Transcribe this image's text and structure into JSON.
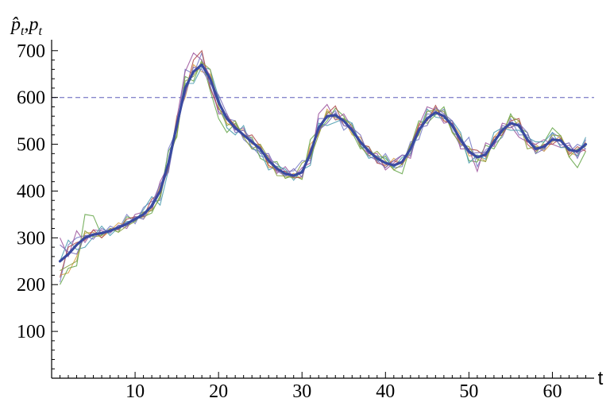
{
  "chart_data": {
    "type": "line",
    "xlabel": "t",
    "ylabel": "p̂t, pt",
    "ylabel_parts": {
      "hat": "p̂",
      "sub1": "t",
      "sep": ",",
      "p": "p",
      "sub2": "t"
    },
    "xlim": [
      0,
      65
    ],
    "ylim": [
      0,
      720
    ],
    "x_ticks": [
      10,
      20,
      30,
      40,
      50,
      60
    ],
    "y_ticks": [
      100,
      200,
      300,
      400,
      500,
      600,
      700
    ],
    "reference_line": {
      "y": 600,
      "style": "dashed",
      "color": "#8888cc"
    },
    "colors": {
      "mean": "#3a4aa0",
      "samples": [
        "#7a7fc8",
        "#d9a24a",
        "#6aa84f",
        "#a05aa0",
        "#4f9fb0",
        "#b05050",
        "#8aa040",
        "#7a6ab8"
      ]
    },
    "mean_series": {
      "name": "",
      "x": [
        1,
        2,
        3,
        4,
        5,
        6,
        7,
        8,
        9,
        10,
        11,
        12,
        13,
        14,
        15,
        16,
        17,
        18,
        19,
        20,
        21,
        22,
        23,
        24,
        25,
        26,
        27,
        28,
        29,
        30,
        31,
        32,
        33,
        34,
        35,
        36,
        37,
        38,
        39,
        40,
        41,
        42,
        43,
        44,
        45,
        46,
        47,
        48,
        49,
        50,
        51,
        52,
        53,
        54,
        55,
        56,
        57,
        58,
        59,
        60,
        61,
        62,
        63,
        64
      ],
      "y": [
        250,
        265,
        285,
        300,
        307,
        310,
        315,
        322,
        330,
        340,
        350,
        368,
        400,
        460,
        540,
        620,
        655,
        670,
        640,
        590,
        555,
        535,
        520,
        505,
        490,
        465,
        448,
        437,
        433,
        440,
        480,
        535,
        560,
        562,
        550,
        530,
        505,
        485,
        470,
        460,
        455,
        462,
        490,
        530,
        555,
        568,
        560,
        540,
        510,
        485,
        472,
        478,
        505,
        530,
        545,
        540,
        510,
        490,
        495,
        510,
        508,
        488,
        485,
        500
      ]
    },
    "sample_offsets": [
      [
        -45,
        20,
        15,
        5,
        0,
        -5,
        10,
        -5,
        20,
        -10,
        15,
        10,
        -20,
        30,
        -10,
        40,
        -5,
        25,
        -15,
        -20,
        0,
        15,
        -10,
        -10,
        -15,
        5,
        10,
        5,
        10,
        25,
        -15,
        20,
        -5,
        10,
        -20,
        15,
        -10,
        5,
        -10,
        20,
        -5,
        -10,
        15,
        -20,
        10,
        -5,
        15,
        -10,
        -15,
        30,
        -20,
        10,
        -5,
        -15,
        10,
        -20,
        10,
        5,
        -10,
        15,
        5,
        -5,
        15,
        -10
      ],
      [
        -30,
        -40,
        -25,
        10,
        5,
        -10,
        0,
        10,
        -5,
        5,
        -10,
        -5,
        10,
        -15,
        20,
        -20,
        15,
        -15,
        10,
        5,
        -10,
        0,
        10,
        -5,
        10,
        -15,
        5,
        -10,
        5,
        -15,
        20,
        -15,
        15,
        -10,
        5,
        -10,
        10,
        -5,
        5,
        -10,
        15,
        -5,
        -10,
        15,
        -5,
        10,
        -10,
        5,
        10,
        -10,
        5,
        -15,
        10,
        5,
        -10,
        10,
        -5,
        10,
        -10,
        -5,
        10,
        -5,
        -10,
        5
      ],
      [
        -50,
        -30,
        -45,
        50,
        40,
        -5,
        5,
        -10,
        15,
        0,
        -5,
        -15,
        -10,
        25,
        -25,
        25,
        -20,
        10,
        -25,
        -35,
        -30,
        10,
        -5,
        10,
        -20,
        -5,
        15,
        -10,
        0,
        -15,
        30,
        -5,
        -10,
        15,
        10,
        -5,
        -15,
        10,
        -5,
        15,
        -10,
        -25,
        5,
        20,
        -10,
        -5,
        20,
        -15,
        5,
        -20,
        -10,
        20,
        -15,
        -10,
        20,
        -5,
        15,
        -10,
        10,
        25,
        10,
        -15,
        -35,
        -15
      ],
      [
        50,
        -5,
        30,
        -10,
        10,
        5,
        -5,
        5,
        -10,
        10,
        5,
        -10,
        20,
        -5,
        15,
        35,
        40,
        10,
        5,
        -25,
        10,
        -5,
        15,
        -15,
        -5,
        10,
        -10,
        15,
        -5,
        10,
        -20,
        30,
        25,
        -10,
        15,
        5,
        -10,
        -5,
        10,
        -15,
        5,
        15,
        -20,
        10,
        25,
        5,
        -15,
        10,
        -20,
        5,
        -30,
        25,
        -10,
        15,
        -5,
        -25,
        -5,
        10,
        15,
        -10,
        -15,
        10,
        -5,
        -10
      ],
      [
        0,
        30,
        -10,
        -20,
        -5,
        15,
        -10,
        0,
        5,
        -5,
        10,
        20,
        -30,
        -15,
        -5,
        10,
        -25,
        -5,
        20,
        10,
        -20,
        -15,
        20,
        -15,
        -5,
        -20,
        5,
        10,
        -10,
        5,
        -25,
        10,
        -20,
        -15,
        5,
        15,
        -5,
        -15,
        5,
        10,
        -5,
        10,
        -10,
        -5,
        20,
        -10,
        -5,
        10,
        15,
        -25,
        5,
        -10,
        20,
        5,
        -15,
        -10,
        5,
        15,
        10,
        15,
        -15,
        5,
        -10,
        15
      ],
      [
        -35,
        15,
        5,
        -5,
        10,
        -10,
        5,
        -5,
        10,
        5,
        -5,
        15,
        -5,
        -10,
        10,
        -10,
        25,
        30,
        -20,
        -15,
        5,
        5,
        -5,
        15,
        5,
        -10,
        -5,
        5,
        -5,
        -10,
        10,
        -10,
        5,
        20,
        -10,
        5,
        -5,
        10,
        -10,
        -5,
        10,
        -5,
        5,
        10,
        -5,
        15,
        -10,
        5,
        -10,
        5,
        15,
        -5,
        10,
        -10,
        5,
        15,
        -10,
        -5,
        5,
        -10,
        5,
        -10,
        10,
        -15
      ],
      [
        -20,
        -25,
        -35,
        15,
        -5,
        -5,
        5,
        -10,
        -5,
        -5,
        5,
        -10,
        -15,
        5,
        -20,
        15,
        -10,
        5,
        20,
        -10,
        -15,
        15,
        -5,
        -15,
        10,
        5,
        -15,
        -5,
        -5,
        20,
        -10,
        -15,
        10,
        -5,
        5,
        10,
        -10,
        -10,
        15,
        5,
        -10,
        -5,
        10,
        -10,
        15,
        5,
        10,
        -15,
        -10,
        10,
        -5,
        -15,
        5,
        -5,
        15,
        10,
        -20,
        5,
        -5,
        10,
        10,
        -15,
        5,
        -5
      ],
      [
        35,
        5,
        -20,
        5,
        -10,
        10,
        -5,
        5,
        -5,
        5,
        -10,
        5,
        15,
        -20,
        5,
        -15,
        10,
        -10,
        -10,
        15,
        10,
        -10,
        10,
        5,
        -10,
        15,
        -5,
        -5,
        15,
        -10,
        5,
        -5,
        -15,
        5,
        -10,
        5,
        15,
        -10,
        -5,
        -10,
        10,
        15,
        -15,
        5,
        -15,
        10,
        5,
        10,
        -5,
        -5,
        10,
        5,
        -5,
        10,
        -10,
        5,
        15,
        -10,
        -5,
        5,
        -10,
        15,
        -15,
        10
      ]
    ]
  }
}
